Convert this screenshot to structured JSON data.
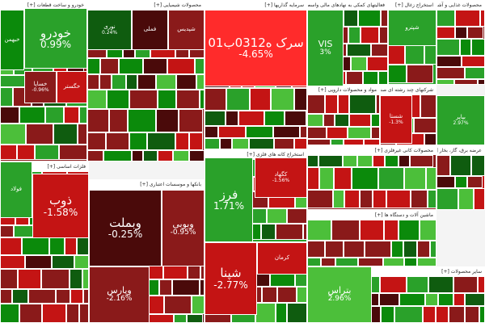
{
  "colors": {
    "strong_green": "#0b8a0b",
    "green": "#2aa12a",
    "light_green": "#4cbf3a",
    "dark_green": "#0f5c0f",
    "strong_red": "#ff2b2b",
    "red": "#c41414",
    "dark_red": "#8a1a1a",
    "deep_red": "#4a0a0a"
  },
  "sectors": [
    {
      "title": "خودرو و ساخت قطعات [+]"
    },
    {
      "title": "محصولات شیمیایی [+]"
    },
    {
      "title": "سرمایه گذاریها [+]"
    },
    {
      "title": "فعالیتهای کمکی به نهادهای مالی واسط [+]"
    },
    {
      "title": "استخراج زغال [+]"
    },
    {
      "title": "محصولات غذایی و آشامیدنی به [+]"
    },
    {
      "title": "عرضه برق، گاز، بخار [+]"
    },
    {
      "title": "مواد و محصولات دارویی [+]"
    },
    {
      "title": "شرکتهای چند رشته ای صنعتی [+]"
    },
    {
      "title": "فلزات اساسی [+]"
    },
    {
      "title": "بانکها و موسسات اعتباری [+]"
    },
    {
      "title": "استخراج کانه های فلزی [+]"
    },
    {
      "title": "فراورده های نفتی، کک و سوخت هسته ای [+]"
    },
    {
      "title": "محصولات کانی غیرفلزی [+]"
    },
    {
      "title": "ماشین آلات و دستگاه ها [+]"
    },
    {
      "title": "سایر محصولات [+]"
    }
  ],
  "tiles": [
    {
      "name": "خودرو",
      "change": "0.99%"
    },
    {
      "name": "سرک ه0312ب01",
      "change": "-4.65%"
    },
    {
      "name": "ذوب",
      "change": "-1.58%"
    },
    {
      "name": "وبملت",
      "change": "-0.25%"
    },
    {
      "name": "وبوبی",
      "change": "-0.95%"
    },
    {
      "name": "فرز",
      "change": "1.71%"
    },
    {
      "name": "شپنا",
      "change": "-2.77%"
    },
    {
      "name": "وپارس",
      "change": "-2.16%"
    },
    {
      "name": "VIS",
      "change": "3%"
    },
    {
      "name": "بتراس",
      "change": "2.96%"
    },
    {
      "name": "کگهاد",
      "change": "-1.56%"
    },
    {
      "name": "نوری",
      "change": "0.24%"
    },
    {
      "name": "خساپا",
      "change": "-0.96%"
    },
    {
      "name": "شستا",
      "change": "-1.3%"
    },
    {
      "name": "بپاپر",
      "change": "2.97%"
    },
    {
      "name": "فولاد",
      "change": ""
    },
    {
      "name": "فملی",
      "change": ""
    },
    {
      "name": "خبهمن",
      "change": ""
    },
    {
      "name": "خگستر",
      "change": ""
    },
    {
      "name": "شپدیس",
      "change": ""
    },
    {
      "name": "کرمان",
      "change": ""
    },
    {
      "name": "شپترو",
      "change": ""
    }
  ]
}
